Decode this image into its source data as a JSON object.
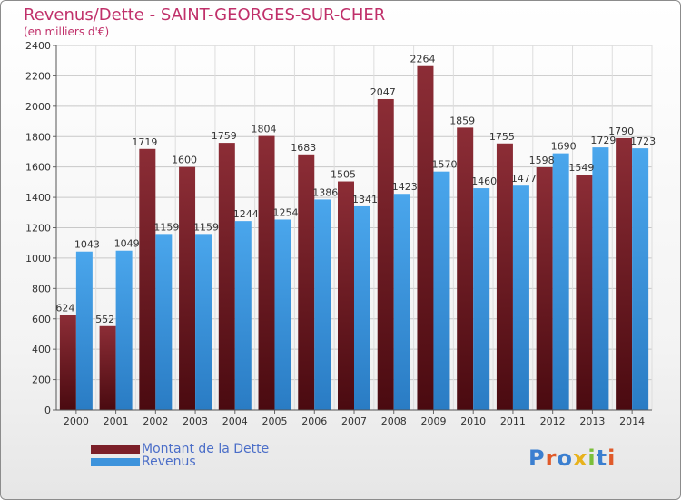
{
  "title": "Revenus/Dette - SAINT-GEORGES-SUR-CHER",
  "subtitle": "(en milliers d'€)",
  "logo_text": "Proxiti",
  "colors": {
    "dette": "#7b1f28",
    "revenus": "#3d93dc",
    "title": "#c0306a",
    "legend_text": "#4b6ec8"
  },
  "chart_data": {
    "type": "bar",
    "categories": [
      "2000",
      "2001",
      "2002",
      "2003",
      "2004",
      "2005",
      "2006",
      "2007",
      "2008",
      "2009",
      "2010",
      "2011",
      "2012",
      "2013",
      "2014"
    ],
    "series": [
      {
        "name": "Montant de la Dette",
        "values": [
          624,
          552,
          1719,
          1600,
          1759,
          1804,
          1683,
          1505,
          2047,
          2264,
          1859,
          1755,
          1598,
          1549,
          1790
        ]
      },
      {
        "name": "Revenus",
        "values": [
          1043,
          1049,
          1159,
          1159,
          1244,
          1254,
          1386,
          1341,
          1423,
          1570,
          1460,
          1477,
          1690,
          1729,
          1723
        ]
      }
    ],
    "ylim": [
      0,
      2400
    ],
    "yticks": [
      0,
      200,
      400,
      600,
      800,
      1000,
      1200,
      1400,
      1600,
      1800,
      2000,
      2200,
      2400
    ],
    "grid": true,
    "legend_position": "bottom-left"
  }
}
